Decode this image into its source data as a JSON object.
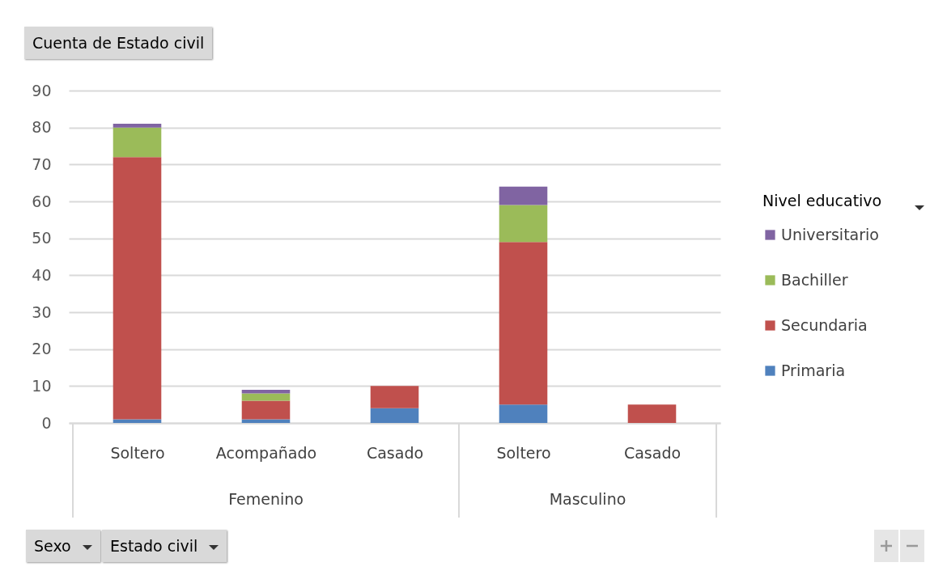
{
  "chart_data": {
    "type": "bar",
    "title": "Cuenta de Estado civil",
    "legend_title": "Nivel educativo",
    "categories": [
      "Soltero",
      "Acompañado",
      "Casado",
      "Soltero",
      "Casado"
    ],
    "series": [
      {
        "name": "Primaria",
        "color": "#4f81bd",
        "values": [
          1,
          1,
          4,
          5,
          null
        ]
      },
      {
        "name": "Secundaria",
        "color": "#c0504d",
        "values": [
          71,
          5,
          6,
          44,
          5
        ]
      },
      {
        "name": "Bachiller",
        "color": "#9bbb59",
        "values": [
          8,
          2,
          null,
          10,
          null
        ]
      },
      {
        "name": "Universitario",
        "color": "#8064a2",
        "values": [
          1,
          1,
          null,
          5,
          null
        ]
      }
    ],
    "stacked": true,
    "ylim": [
      0,
      90
    ],
    "yticks": [
      0,
      10,
      20,
      30,
      40,
      50,
      60,
      70,
      80,
      90
    ],
    "grid": "y",
    "legend": "right",
    "annotations": [
      "Femenino",
      "Masculino",
      "Sexo",
      "Estado civil"
    ]
  }
}
